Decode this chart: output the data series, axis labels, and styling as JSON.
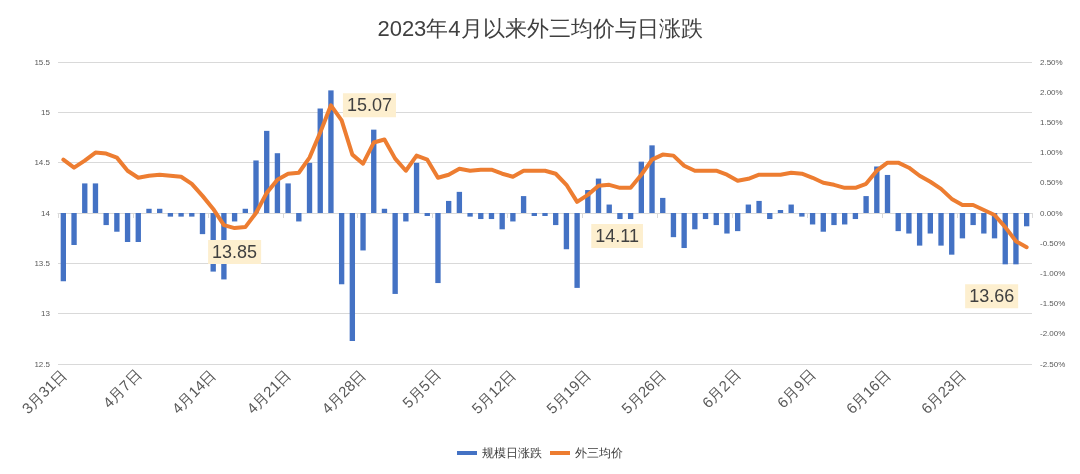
{
  "chart_data": {
    "type": "bar",
    "title": "2023年4月以来外三均价与日涨跌",
    "categories": [
      "3月31日",
      null,
      null,
      null,
      null,
      null,
      null,
      "4月7日",
      null,
      null,
      null,
      null,
      null,
      null,
      "4月14日",
      null,
      null,
      null,
      null,
      null,
      null,
      "4月21日",
      null,
      null,
      null,
      null,
      null,
      null,
      "4月28日",
      null,
      null,
      null,
      null,
      null,
      null,
      "5月5日",
      null,
      null,
      null,
      null,
      null,
      null,
      "5月12日",
      null,
      null,
      null,
      null,
      null,
      null,
      "5月19日",
      null,
      null,
      null,
      null,
      null,
      null,
      "5月26日",
      null,
      null,
      null,
      null,
      null,
      null,
      "6月2日",
      null,
      null,
      null,
      null,
      null,
      null,
      "6月9日",
      null,
      null,
      null,
      null,
      null,
      null,
      "6月16日",
      null,
      null,
      null,
      null,
      null,
      null,
      "6月23日",
      null,
      null,
      null,
      null,
      null,
      null
    ],
    "series": [
      {
        "name": "规模日涨跌",
        "axis": "y2",
        "color": "#4472c4",
        "values": [
          -1.13,
          -0.53,
          0.49,
          0.49,
          -0.2,
          -0.31,
          -0.48,
          -0.48,
          0.07,
          0.07,
          -0.06,
          -0.06,
          -0.06,
          -0.35,
          -0.97,
          -1.1,
          -0.14,
          0.07,
          0.87,
          1.36,
          0.99,
          0.49,
          -0.14,
          0.83,
          1.73,
          2.03,
          -1.18,
          -2.12,
          -0.62,
          1.38,
          0.07,
          -1.34,
          -0.14,
          0.83,
          -0.05,
          -1.16,
          0.2,
          0.35,
          -0.06,
          -0.1,
          -0.1,
          -0.27,
          -0.14,
          0.28,
          -0.05,
          -0.05,
          -0.2,
          -0.6,
          -1.24,
          0.38,
          0.57,
          0.14,
          -0.1,
          -0.1,
          0.85,
          1.12,
          0.25,
          -0.4,
          -0.58,
          -0.27,
          -0.1,
          -0.2,
          -0.34,
          -0.3,
          0.14,
          0.2,
          -0.1,
          0.05,
          0.14,
          -0.06,
          -0.19,
          -0.31,
          -0.2,
          -0.19,
          -0.1,
          0.28,
          0.77,
          0.63,
          -0.3,
          -0.34,
          -0.54,
          -0.34,
          -0.54,
          -0.69,
          -0.42,
          -0.2,
          -0.34,
          -0.42,
          -0.85,
          -0.85,
          -0.22
        ]
      },
      {
        "name": "外三均价",
        "type": "line",
        "color": "#ed7d31",
        "values": [
          14.53,
          14.45,
          14.52,
          14.6,
          14.59,
          14.55,
          14.42,
          14.35,
          14.37,
          14.38,
          14.37,
          14.36,
          14.29,
          14.17,
          14.04,
          13.88,
          13.85,
          13.86,
          14.0,
          14.2,
          14.33,
          14.39,
          14.4,
          14.55,
          14.8,
          15.07,
          14.92,
          14.58,
          14.49,
          14.7,
          14.73,
          14.54,
          14.42,
          14.57,
          14.53,
          14.35,
          14.38,
          14.44,
          14.42,
          14.43,
          14.43,
          14.39,
          14.36,
          14.42,
          14.42,
          14.42,
          14.39,
          14.28,
          14.11,
          14.18,
          14.27,
          14.28,
          14.25,
          14.25,
          14.38,
          14.53,
          14.58,
          14.57,
          14.47,
          14.42,
          14.42,
          14.42,
          14.38,
          14.32,
          14.34,
          14.38,
          14.38,
          14.38,
          14.4,
          14.39,
          14.35,
          14.3,
          14.28,
          14.25,
          14.25,
          14.29,
          14.42,
          14.5,
          14.5,
          14.45,
          14.37,
          14.31,
          14.24,
          14.14,
          14.08,
          14.08,
          14.03,
          13.98,
          13.86,
          13.72,
          13.66
        ],
        "value_labels": [
          null,
          null,
          null,
          null,
          null,
          null,
          null,
          null,
          null,
          null,
          null,
          null,
          null,
          null,
          null,
          null,
          "13.85",
          null,
          null,
          null,
          null,
          null,
          null,
          null,
          null,
          "15.07",
          null,
          null,
          null,
          null,
          null,
          null,
          null,
          null,
          null,
          null,
          null,
          null,
          null,
          null,
          null,
          null,
          null,
          null,
          null,
          null,
          null,
          null,
          "14.11",
          null,
          null,
          null,
          null,
          null,
          null,
          null,
          null,
          null,
          null,
          null,
          null,
          null,
          null,
          null,
          null,
          null,
          null,
          null,
          null,
          null,
          null,
          null,
          null,
          null,
          null,
          null,
          null,
          null,
          null,
          null,
          null,
          null,
          null,
          null,
          null,
          null,
          null,
          null,
          null,
          null,
          "13.66"
        ]
      }
    ],
    "ylim": [
      12.5,
      15.5
    ],
    "yticks": [
      12.5,
      13,
      13.5,
      14,
      14.5,
      15,
      15.5
    ],
    "y2lim": [
      -2.5,
      2.5
    ],
    "y2ticks": [
      {
        "value": -2.5,
        "label": "-2.50%"
      },
      {
        "value": -2,
        "label": "-2.00%"
      },
      {
        "value": -1.5,
        "label": "-1.50%"
      },
      {
        "value": -1,
        "label": "-1.00%"
      },
      {
        "value": -0.5,
        "label": "-0.50%"
      },
      {
        "value": 0,
        "label": "0.00%"
      },
      {
        "value": 0.5,
        "label": "0.50%"
      },
      {
        "value": 1,
        "label": "1.00%"
      },
      {
        "value": 1.5,
        "label": "1.50%"
      },
      {
        "value": 2,
        "label": "2.00%"
      },
      {
        "value": 2.5,
        "label": "2.50%"
      }
    ],
    "grid": true,
    "legend": "bottom"
  }
}
